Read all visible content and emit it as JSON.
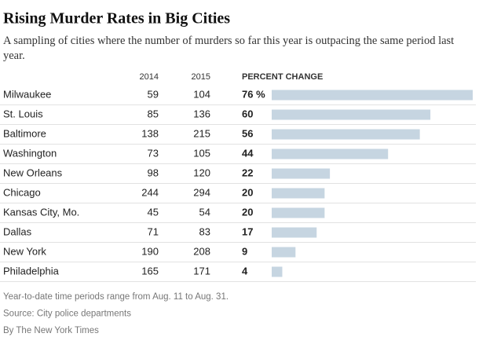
{
  "chart_data": {
    "type": "bar",
    "title": "Rising Murder Rates in Big Cities",
    "subtitle": "A sampling of cities where the number of murders so far this year is outpacing the same period last year.",
    "categories": [
      "Milwaukee",
      "St. Louis",
      "Baltimore",
      "Washington",
      "New Orleans",
      "Chicago",
      "Kansas City, Mo.",
      "Dallas",
      "New York",
      "Philadelphia"
    ],
    "series": [
      {
        "name": "2014",
        "values": [
          59,
          85,
          138,
          73,
          98,
          244,
          45,
          71,
          190,
          165
        ]
      },
      {
        "name": "2015",
        "values": [
          104,
          136,
          215,
          105,
          120,
          294,
          54,
          83,
          208,
          171
        ]
      },
      {
        "name": "PERCENT CHANGE",
        "color": "#c6d5e1",
        "values": [
          76,
          60,
          56,
          44,
          22,
          20,
          20,
          17,
          9,
          4
        ],
        "value_labels": [
          "76 %",
          "60",
          "56",
          "44",
          "22",
          "20",
          "20",
          "17",
          "9",
          "4"
        ]
      }
    ],
    "notes": [
      "Year-to-date time periods range from Aug. 11 to Aug. 31.",
      "Source: City police departments",
      "By The New York Times"
    ]
  }
}
